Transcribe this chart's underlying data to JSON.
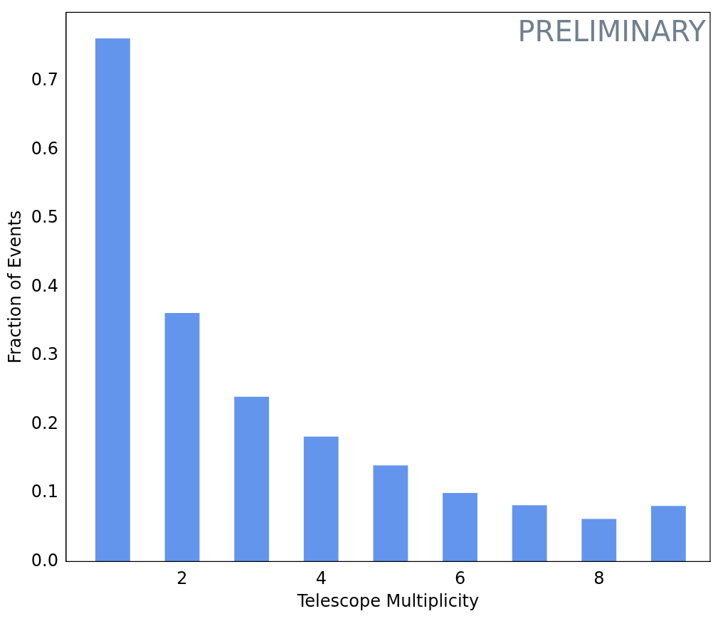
{
  "chart_data": {
    "type": "bar",
    "xlabel": "Telescope Multiplicity",
    "ylabel": "Fraction of Events",
    "x": [
      1,
      2,
      3,
      4,
      5,
      6,
      7,
      8,
      9
    ],
    "values": [
      0.762,
      0.362,
      0.24,
      0.182,
      0.14,
      0.1,
      0.082,
      0.062,
      0.081
    ],
    "color": "#6495ed",
    "xlim": [
      0.33,
      9.6
    ],
    "xticks": [
      2,
      4,
      6,
      8
    ],
    "ylim": [
      0,
      0.8
    ],
    "yticks": [
      {
        "value": 0,
        "label": "0.0"
      },
      0.1,
      0.2,
      0.3,
      0.4,
      0.5,
      0.6,
      0.7
    ],
    "grid": false,
    "legend": false,
    "annotations": [
      "PRELIMINARY"
    ]
  }
}
